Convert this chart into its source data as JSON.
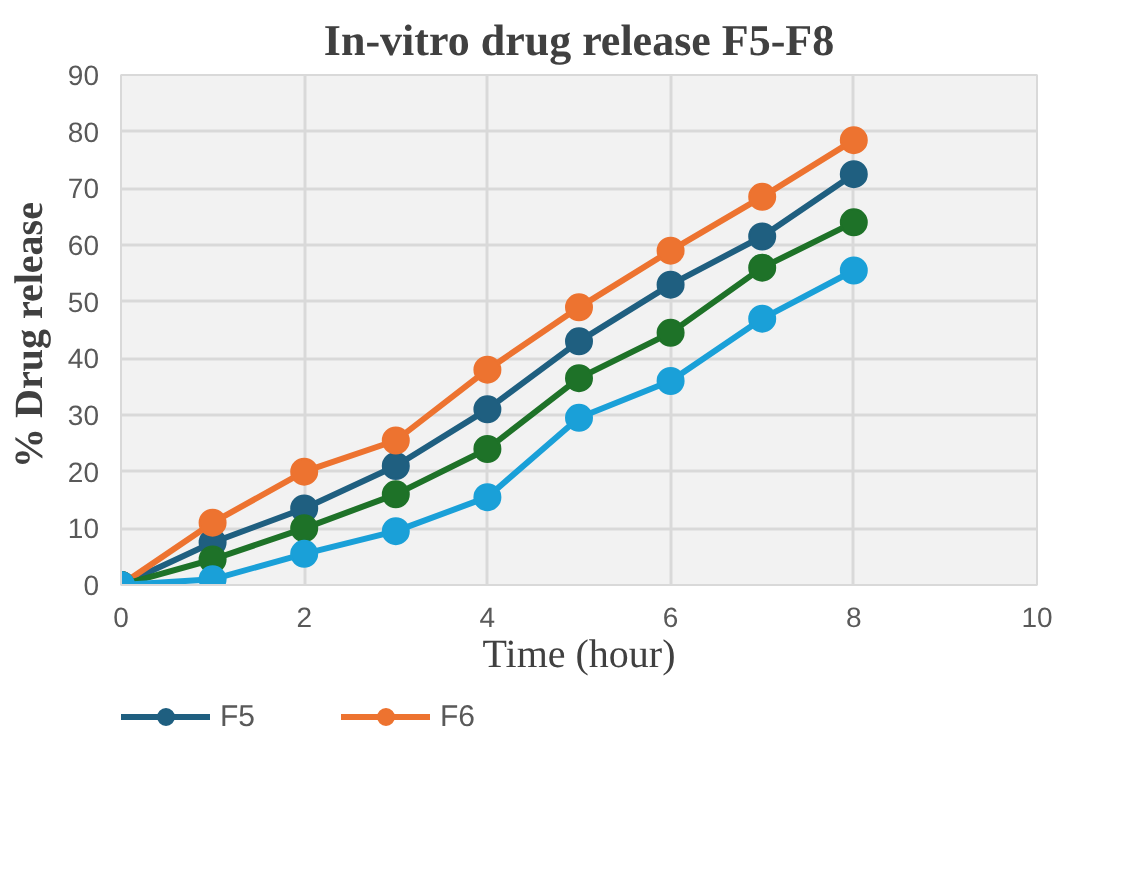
{
  "chart_data": {
    "type": "line",
    "title": "In-vitro drug release F5-F8",
    "xlabel": "Time (hour)",
    "ylabel": "% Drug  release",
    "x": [
      0,
      1,
      2,
      3,
      4,
      5,
      6,
      7,
      8
    ],
    "series": [
      {
        "name": "F5",
        "color": "#1f5f80",
        "values": [
          0,
          7.5,
          13.5,
          21,
          31,
          43,
          53,
          61.5,
          72.5
        ]
      },
      {
        "name": "F6",
        "color": "#ed7330",
        "values": [
          0,
          11,
          20,
          25.5,
          38,
          49,
          59,
          68.5,
          78.5
        ]
      },
      {
        "color": "#1e7228",
        "values": [
          0,
          4.5,
          10,
          16,
          24,
          36.5,
          44.5,
          56,
          64
        ]
      },
      {
        "color": "#1aa0d8",
        "values": [
          0,
          1,
          5.5,
          9.5,
          15.5,
          29.5,
          36,
          47,
          55.5
        ]
      }
    ],
    "xlim": [
      0,
      10
    ],
    "xticks": [
      0,
      2,
      4,
      6,
      8,
      10
    ],
    "ylim": [
      0,
      90
    ],
    "yticks": [
      0,
      10,
      20,
      30,
      40,
      50,
      60,
      70,
      80,
      90
    ],
    "grid": true,
    "legend": "bottom left",
    "marker": "circle",
    "line_style": "solid"
  }
}
